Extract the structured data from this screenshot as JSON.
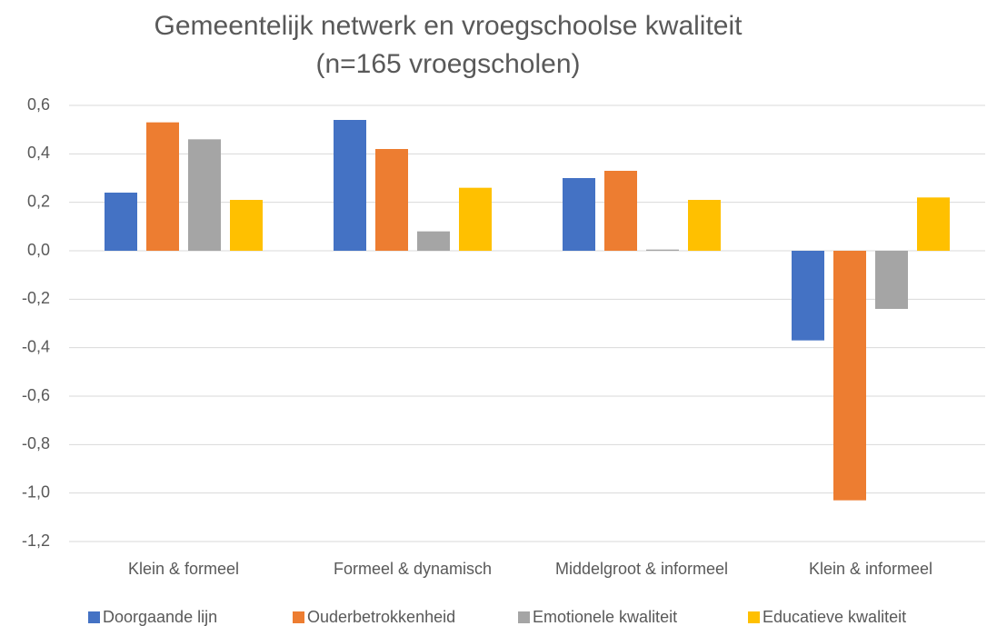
{
  "chart_data": {
    "type": "bar",
    "title": "Gemeentelijk netwerk en vroegschoolse kwaliteit",
    "subtitle": "(n=165 vroegscholen)",
    "categories": [
      "Klein & formeel",
      "Formeel & dynamisch",
      "Middelgroot & informeel",
      "Klein & informeel"
    ],
    "series": [
      {
        "name": "Doorgaande lijn",
        "color": "#4472c4",
        "values": [
          0.24,
          0.54,
          0.3,
          -0.37
        ]
      },
      {
        "name": "Ouderbetrokkenheid",
        "color": "#ed7d31",
        "values": [
          0.53,
          0.42,
          0.33,
          -1.03
        ]
      },
      {
        "name": "Emotionele kwaliteit",
        "color": "#a5a5a5",
        "values": [
          0.46,
          0.08,
          0.005,
          -0.24
        ]
      },
      {
        "name": "Educatieve kwaliteit",
        "color": "#ffc000",
        "values": [
          0.21,
          0.26,
          0.21,
          0.22
        ]
      }
    ],
    "ylim": [
      -1.2,
      0.6
    ],
    "yticks": [
      {
        "value": -1.2,
        "label": "-1,2"
      },
      {
        "value": -1.0,
        "label": "-1,0"
      },
      {
        "value": -0.8,
        "label": "-0,8"
      },
      {
        "value": -0.6,
        "label": "-0,6"
      },
      {
        "value": -0.4,
        "label": "-0,4"
      },
      {
        "value": -0.2,
        "label": "-0,2"
      },
      {
        "value": 0,
        "label": "0,0"
      },
      {
        "value": 0.2,
        "label": "0,2"
      },
      {
        "value": 0.4,
        "label": "0,4"
      },
      {
        "value": 0.6,
        "label": "0,6"
      }
    ],
    "grid": true,
    "legend": "bottom"
  }
}
